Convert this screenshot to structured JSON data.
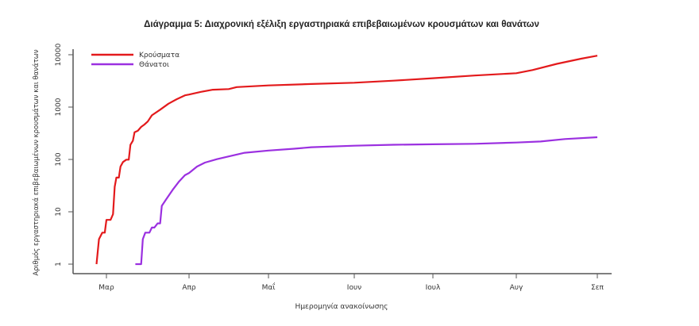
{
  "chart_data": {
    "type": "line",
    "title": "Διάγραμμα 5: Διαχρονική εξέλιξη εργαστηριακά επιβεβαιωμένων κρουσμάτων και θανάτων",
    "xlabel": "Ημερομηνία ανακοίνωσης",
    "ylabel": "Αριθμός εργαστηριακά επιβεβαιωμένων κρουσμάτων και θανάτων",
    "yscale": "log",
    "ylim": [
      1,
      10000
    ],
    "y_ticks": [
      "1",
      "10",
      "100",
      "1000",
      "10000"
    ],
    "x_ticks": [
      "Μαρ",
      "Απρ",
      "Μαΐ",
      "Ιουν",
      "Ιουλ",
      "Αυγ",
      "Σεπ"
    ],
    "grid": false,
    "legend_position": "top-left",
    "x_unit": "month index (0 = Μαρ start, 6 = Σεπ start)",
    "series": [
      {
        "name": "Κρούσματα",
        "color": "#e31a1c",
        "points": [
          [
            -0.12,
            1
          ],
          [
            -0.09,
            3
          ],
          [
            -0.05,
            4
          ],
          [
            -0.02,
            4
          ],
          [
            0.0,
            7
          ],
          [
            0.05,
            7
          ],
          [
            0.08,
            9
          ],
          [
            0.1,
            30
          ],
          [
            0.12,
            45
          ],
          [
            0.15,
            45
          ],
          [
            0.17,
            73
          ],
          [
            0.2,
            89
          ],
          [
            0.24,
            99
          ],
          [
            0.27,
            99
          ],
          [
            0.29,
            190
          ],
          [
            0.32,
            228
          ],
          [
            0.34,
            331
          ],
          [
            0.38,
            352
          ],
          [
            0.42,
            418
          ],
          [
            0.46,
            464
          ],
          [
            0.5,
            530
          ],
          [
            0.55,
            695
          ],
          [
            0.65,
            892
          ],
          [
            0.75,
            1156
          ],
          [
            0.85,
            1415
          ],
          [
            0.95,
            1673
          ],
          [
            1.0,
            1735
          ],
          [
            1.15,
            1955
          ],
          [
            1.3,
            2145
          ],
          [
            1.5,
            2207
          ],
          [
            1.6,
            2408
          ],
          [
            2.0,
            2591
          ],
          [
            2.5,
            2760
          ],
          [
            3.0,
            2915
          ],
          [
            3.5,
            3200
          ],
          [
            4.0,
            3560
          ],
          [
            4.5,
            4010
          ],
          [
            5.0,
            4440
          ],
          [
            5.2,
            5100
          ],
          [
            5.5,
            6700
          ],
          [
            5.8,
            8400
          ],
          [
            6.0,
            9600
          ]
        ]
      },
      {
        "name": "Θάνατοι",
        "color": "#9b30e0",
        "points": [
          [
            0.35,
            1
          ],
          [
            0.42,
            1
          ],
          [
            0.44,
            3
          ],
          [
            0.47,
            4
          ],
          [
            0.52,
            4
          ],
          [
            0.55,
            5
          ],
          [
            0.58,
            5
          ],
          [
            0.62,
            6
          ],
          [
            0.65,
            6
          ],
          [
            0.67,
            13
          ],
          [
            0.72,
            17
          ],
          [
            0.8,
            26
          ],
          [
            0.88,
            38
          ],
          [
            0.95,
            50
          ],
          [
            1.0,
            55
          ],
          [
            1.1,
            73
          ],
          [
            1.2,
            87
          ],
          [
            1.35,
            101
          ],
          [
            1.5,
            114
          ],
          [
            1.7,
            134
          ],
          [
            2.0,
            148
          ],
          [
            2.3,
            160
          ],
          [
            2.5,
            171
          ],
          [
            3.0,
            183
          ],
          [
            3.5,
            191
          ],
          [
            4.0,
            195
          ],
          [
            4.5,
            199
          ],
          [
            5.0,
            210
          ],
          [
            5.3,
            220
          ],
          [
            5.6,
            245
          ],
          [
            6.0,
            266
          ]
        ]
      }
    ]
  }
}
